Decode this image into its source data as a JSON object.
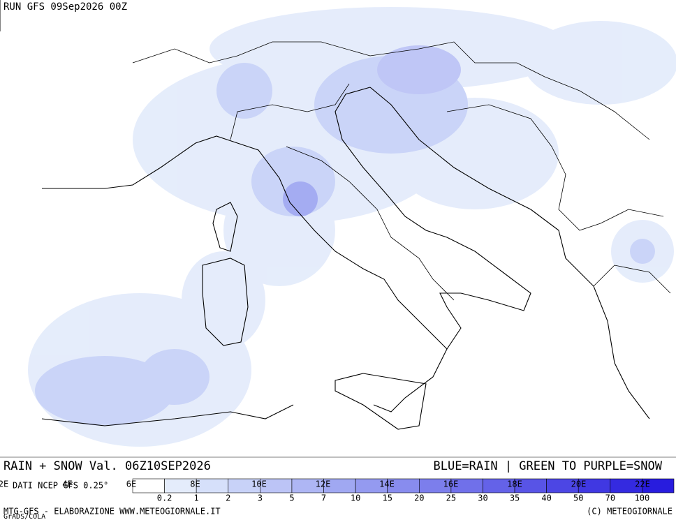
{
  "header": {
    "run": "RUN GFS 09Sep2026 00Z"
  },
  "caption": {
    "title": "RAIN + SNOW Val. 06Z10SEP2026",
    "legend_note": "BLUE=RAIN | GREEN TO PURPLE=SNOW"
  },
  "longitudes": [
    "2E",
    "4E",
    "6E",
    "8E",
    "10E",
    "12E",
    "14E",
    "16E",
    "18E",
    "20E",
    "22E"
  ],
  "source": "DATI NCEP GFS 0.25°",
  "legend": {
    "thresholds": [
      "0.2",
      "1",
      "2",
      "3",
      "5",
      "7",
      "10",
      "15",
      "20",
      "25",
      "30",
      "35",
      "40",
      "50",
      "70",
      "100"
    ],
    "colors": [
      "#ffffff",
      "#e4ecfb",
      "#d6e0fa",
      "#c8d2f8",
      "#bcc4f6",
      "#aeb6f4",
      "#a0a8f2",
      "#949af0",
      "#888cee",
      "#7c7eec",
      "#7070ea",
      "#6462e8",
      "#5854e6",
      "#4c46e4",
      "#4038e2",
      "#342ae0",
      "#281cde"
    ]
  },
  "footer": {
    "left": "MTG-GFS - ELABORAZIONE WWW.METEOGIORNALE.IT",
    "software": "GrADS/COLA",
    "right": "(C) METEOGIORNALE"
  }
}
